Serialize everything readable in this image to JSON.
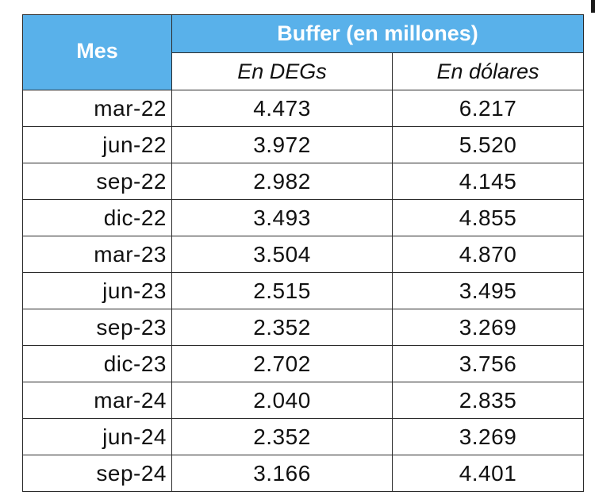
{
  "table": {
    "header": {
      "mes": "Mes",
      "group": "Buffer (en millones)",
      "col_degs": "En DEGs",
      "col_usd": "En dólares"
    },
    "rows": [
      {
        "mes": "mar-22",
        "degs": "4.473",
        "usd": "6.217"
      },
      {
        "mes": "jun-22",
        "degs": "3.972",
        "usd": "5.520"
      },
      {
        "mes": "sep-22",
        "degs": "2.982",
        "usd": "4.145"
      },
      {
        "mes": "dic-22",
        "degs": "3.493",
        "usd": "4.855"
      },
      {
        "mes": "mar-23",
        "degs": "3.504",
        "usd": "4.870"
      },
      {
        "mes": "jun-23",
        "degs": "2.515",
        "usd": "3.495"
      },
      {
        "mes": "sep-23",
        "degs": "2.352",
        "usd": "3.269"
      },
      {
        "mes": "dic-23",
        "degs": "2.702",
        "usd": "3.756"
      },
      {
        "mes": "mar-24",
        "degs": "2.040",
        "usd": "2.835"
      },
      {
        "mes": "jun-24",
        "degs": "2.352",
        "usd": "3.269"
      },
      {
        "mes": "sep-24",
        "degs": "3.166",
        "usd": "4.401"
      }
    ]
  },
  "colors": {
    "header_bg": "#59b1ea",
    "header_text": "#ffffff",
    "border": "#2b2b2b",
    "text": "#111111"
  }
}
